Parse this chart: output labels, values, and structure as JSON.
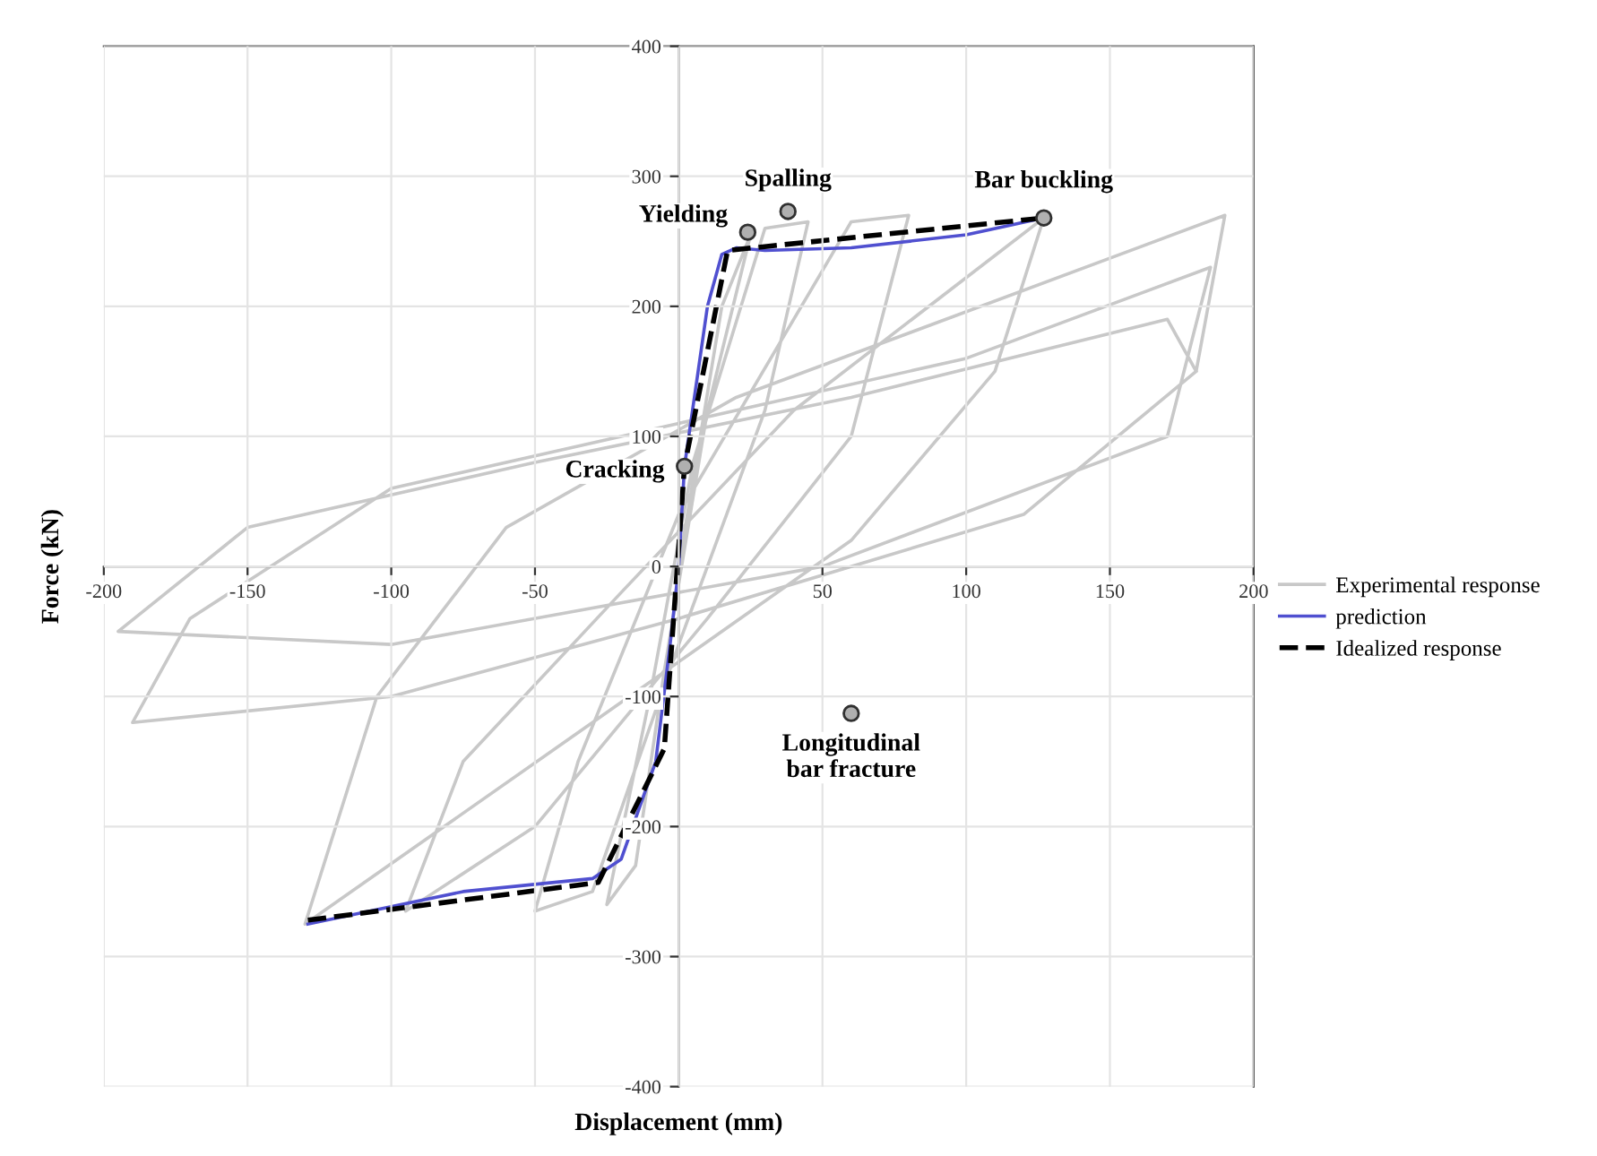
{
  "chart_data": {
    "type": "line",
    "xlabel": "Displacement (mm)",
    "ylabel": "Force (kN)",
    "xlim": [
      -200,
      200
    ],
    "xticks": [
      -200,
      -150,
      -100,
      -50,
      {
        "value": 0,
        "label": null
      },
      50,
      100,
      150,
      200
    ],
    "ylim": [
      -400,
      400
    ],
    "yticks": [
      -400,
      -300,
      -200,
      -100,
      0,
      100,
      200,
      300,
      400
    ],
    "grid": true,
    "legend": "right",
    "series": [
      {
        "name": "Experimental response",
        "color": "#c8c8c8",
        "line_style": "solid",
        "x": [
          0,
          15,
          25,
          10,
          -5,
          -15,
          -25,
          -10,
          5,
          30,
          45,
          30,
          0,
          -30,
          -50,
          -35,
          0,
          60,
          80,
          60,
          10,
          -50,
          -95,
          -75,
          -20,
          40,
          127,
          110,
          60,
          -30,
          -130,
          -105,
          -60,
          20,
          190,
          180,
          120,
          0,
          -100,
          -190,
          -170,
          -100,
          0,
          100,
          185,
          170,
          50,
          -100,
          -195,
          -150,
          -50,
          60,
          170,
          180
        ],
        "values": [
          0,
          200,
          255,
          120,
          -80,
          -230,
          -260,
          -100,
          80,
          260,
          265,
          120,
          -60,
          -250,
          -265,
          -150,
          40,
          265,
          270,
          100,
          -40,
          -200,
          -265,
          -150,
          -20,
          120,
          268,
          150,
          20,
          -120,
          -275,
          -100,
          30,
          130,
          270,
          150,
          40,
          -40,
          -100,
          -120,
          -40,
          60,
          110,
          160,
          230,
          100,
          0,
          -60,
          -50,
          30,
          80,
          130,
          190,
          150
        ]
      },
      {
        "name": "prediction",
        "color": "#5050d0",
        "line_style": "solid",
        "x": [
          -129,
          -75,
          -30,
          -20,
          -8,
          -3,
          0,
          2,
          10,
          15,
          20,
          30,
          60,
          100,
          127
        ],
        "values": [
          -275,
          -250,
          -240,
          -225,
          -150,
          -60,
          0,
          77,
          200,
          240,
          245,
          243,
          245,
          255,
          268
        ]
      },
      {
        "name": "Idealized response",
        "color": "#000000",
        "line_style": "dashed",
        "x": [
          -129,
          -28,
          -5,
          2,
          17,
          127
        ],
        "values": [
          -272,
          -243,
          -140,
          77,
          243,
          268
        ]
      }
    ],
    "annotations": [
      {
        "text": "Yielding",
        "x": 24,
        "y": 257
      },
      {
        "text": "Spalling",
        "x": 38,
        "y": 273
      },
      {
        "text": "Bar buckling",
        "x": 127,
        "y": 268
      },
      {
        "text": "Cracking",
        "x": 2,
        "y": 77
      },
      {
        "text": "Longitudinal\nbar fracture",
        "x": 60,
        "y": -113
      }
    ]
  }
}
